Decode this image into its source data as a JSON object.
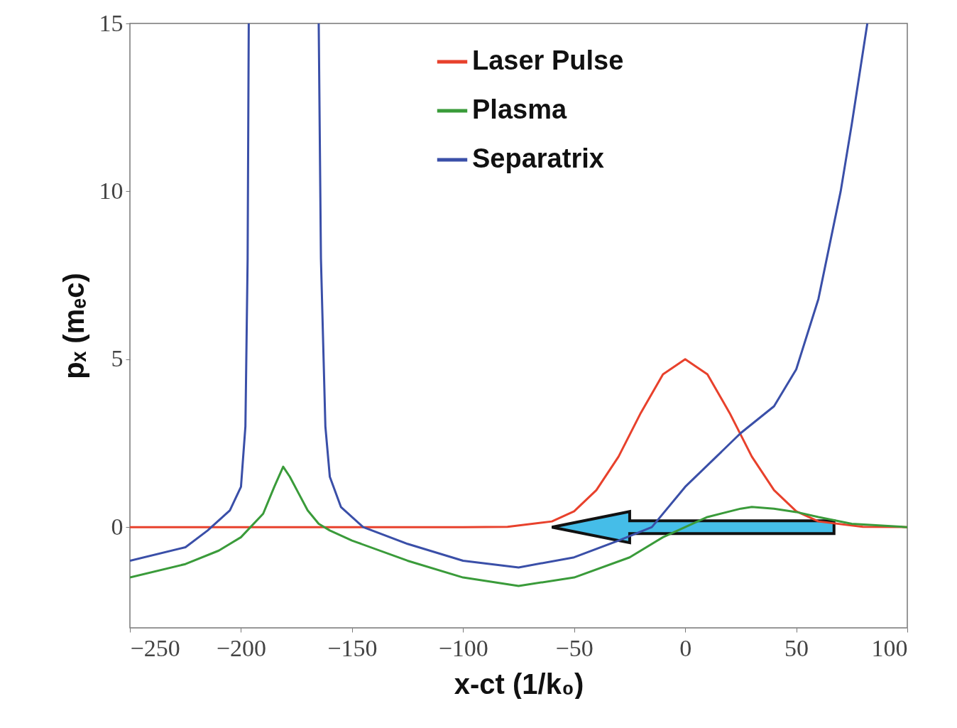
{
  "chart_data": {
    "type": "line",
    "xlabel": "x-ct  (1/k₀)",
    "ylabel": "pₓ (mₑc)",
    "xlim": [
      -250,
      100
    ],
    "ylim": [
      -3,
      15
    ],
    "xticks": [
      -250,
      -200,
      -150,
      -100,
      -50,
      0,
      50,
      100
    ],
    "yticks": [
      0,
      5,
      10,
      15
    ],
    "grid": false,
    "legend": "top right",
    "marker": "none",
    "line_style": "solid",
    "series": [
      {
        "name": "Laser Pulse",
        "color": "#e8412c",
        "x": [
          -250,
          -200,
          -150,
          -100,
          -80,
          -60,
          -50,
          -40,
          -30,
          -20,
          -10,
          0,
          10,
          20,
          30,
          40,
          50,
          60,
          80,
          100
        ],
        "values": [
          0,
          0,
          0,
          0,
          0.01,
          0.17,
          0.47,
          1.1,
          2.1,
          3.4,
          4.55,
          5,
          4.55,
          3.4,
          2.1,
          1.1,
          0.47,
          0.17,
          0.01,
          0
        ]
      },
      {
        "name": "Plasma",
        "color": "#3a9b3a",
        "x": [
          -250,
          -225,
          -210,
          -200,
          -190,
          -185,
          -181,
          -178,
          -174,
          -170,
          -165,
          -160,
          -150,
          -125,
          -100,
          -75,
          -50,
          -25,
          -10,
          0,
          10,
          25,
          30,
          40,
          50,
          60,
          75,
          100
        ],
        "values": [
          -1.5,
          -1.1,
          -0.7,
          -0.3,
          0.4,
          1.2,
          1.8,
          1.5,
          1.0,
          0.5,
          0.1,
          -0.1,
          -0.4,
          -1.0,
          -1.5,
          -1.75,
          -1.5,
          -0.9,
          -0.3,
          0,
          0.3,
          0.55,
          0.6,
          0.55,
          0.45,
          0.3,
          0.1,
          0
        ]
      },
      {
        "name": "Separatrix",
        "color": "#3a4fa8",
        "x": [
          -250,
          -225,
          -215,
          -205,
          -200,
          -198,
          -197,
          -196.5,
          -180,
          -165,
          -164,
          -162,
          -160,
          -155,
          -145,
          -125,
          -100,
          -75,
          -50,
          -30,
          -15,
          0,
          25,
          40,
          50,
          60,
          70,
          75,
          82
        ],
        "values": [
          -1.0,
          -0.6,
          -0.1,
          0.5,
          1.2,
          3,
          8,
          15,
          null,
          15,
          8,
          3,
          1.5,
          0.6,
          0,
          -0.5,
          -1.0,
          -1.2,
          -0.9,
          -0.4,
          0,
          1.2,
          2.8,
          3.6,
          4.7,
          6.8,
          10,
          12,
          15
        ]
      }
    ]
  }
}
